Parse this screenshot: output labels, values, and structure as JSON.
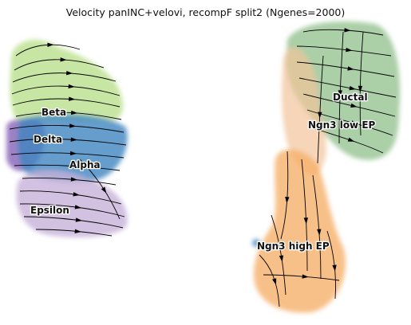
{
  "title": "Velocity panINC+velovi, recompF split2 (Ngenes=2000)",
  "clusters": [
    {
      "id": "beta",
      "label": "Beta",
      "color": "#b5dd84"
    },
    {
      "id": "delta",
      "label": "Delta",
      "color": "#8c6bbb"
    },
    {
      "id": "alpha",
      "label": "Alpha",
      "color": "#3f86c0"
    },
    {
      "id": "epsilon",
      "label": "Epsilon",
      "color": "#c7b1da"
    },
    {
      "id": "ductal",
      "label": "Ductal",
      "color": "#8fbf8a"
    },
    {
      "id": "ngn3-low-ep",
      "label": "Ngn3 low EP",
      "color": "#f2c39a"
    },
    {
      "id": "ngn3-high-ep",
      "label": "Ngn3 high EP",
      "color": "#f6b06a"
    }
  ],
  "stream_color": "#000000"
}
